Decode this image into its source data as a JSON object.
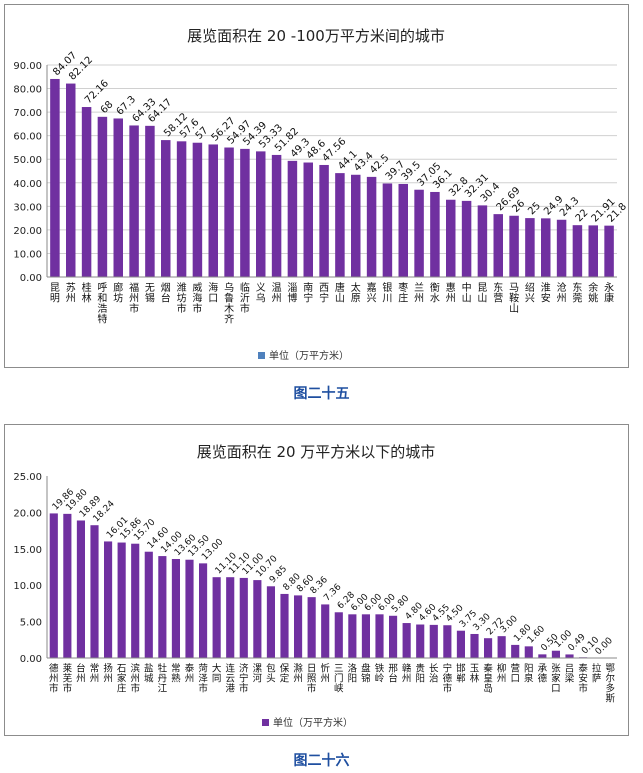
{
  "colors": {
    "bar": "#7030a0",
    "legend_swatch1": "#4f81bd",
    "legend_swatch2": "#7030a0",
    "caption": "#1f4fa0",
    "grid": "#d0d0d0"
  },
  "captions": [
    "图二十五",
    "图二十六"
  ],
  "chart_data": [
    {
      "type": "bar",
      "title": "展览面积在 20 -100万平方米间的城市",
      "legend": "单位（万平方米）",
      "ylim": [
        0,
        90
      ],
      "yticks": [
        "0.00",
        "10.00",
        "20.00",
        "30.00",
        "40.00",
        "50.00",
        "60.00",
        "70.00",
        "80.00",
        "90.00"
      ],
      "grid": true,
      "legend_position": "bottom",
      "categories": [
        "昆明",
        "苏州",
        "桂林",
        "呼和浩特",
        "廊坊",
        "福州市",
        "无锡",
        "烟台",
        "潍坊市",
        "威海市",
        "海口",
        "乌鲁木齐",
        "临沂市",
        "义乌",
        "温州",
        "淄博",
        "南宁",
        "西宁",
        "唐山",
        "太原",
        "嘉兴",
        "银川",
        "枣庄",
        "兰州",
        "衡水",
        "惠州",
        "中山",
        "昆山",
        "东营",
        "马鞍山",
        "绍兴",
        "淮安",
        "沧州",
        "东莞",
        "余姚",
        "永康"
      ],
      "values": [
        84.07,
        82.12,
        72.16,
        68,
        67.3,
        64.33,
        64.17,
        58.12,
        57.6,
        57,
        56.27,
        54.97,
        54.39,
        53.33,
        51.82,
        49.3,
        48.6,
        47.56,
        44.1,
        43.4,
        42.5,
        39.7,
        39.5,
        37.05,
        36.1,
        32.8,
        32.31,
        30.4,
        26.69,
        26,
        25,
        24.9,
        24.3,
        22,
        21.91,
        21.8
      ],
      "labels": [
        "84.07",
        "82.12",
        "72.16",
        "68",
        "67.3",
        "64.33",
        "64.17",
        "58.12",
        "57.6",
        "57",
        "56.27",
        "54.97",
        "54.39",
        "53.33",
        "51.82",
        "49.3",
        "48.6",
        "47.56",
        "44.1",
        "43.4",
        "42.5",
        "39.7",
        "39.5",
        "37.05",
        "36.1",
        "32.8",
        "32.31",
        "30.4",
        "26.69",
        "26",
        "25",
        "24.9",
        "24.3",
        "22",
        "21.91",
        "21.8"
      ]
    },
    {
      "type": "bar",
      "title": "展览面积在 20 万平方米以下的城市",
      "legend": "单位（万平方米）",
      "ylim": [
        0,
        25
      ],
      "yticks": [
        "0.00",
        "5.00",
        "10.00",
        "15.00",
        "20.00",
        "25.00"
      ],
      "grid": false,
      "legend_position": "bottom",
      "categories": [
        "德州市",
        "莱芜市",
        "台州",
        "常州",
        "扬州",
        "石家庄",
        "滨州市",
        "盐城",
        "牡丹江",
        "常熟",
        "泰州",
        "菏泽市",
        "大同",
        "连云港",
        "济宁市",
        "漯河",
        "包头",
        "保定",
        "滁州",
        "日照市",
        "忻州",
        "三门峡",
        "洛阳",
        "盘锦",
        "铁岭",
        "邢台",
        "赣州",
        "贵阳",
        "长治",
        "宁德市",
        "邯郸",
        "玉林",
        "秦皇岛",
        "柳州",
        "营口",
        "阳泉",
        "承德",
        "张家口",
        "吕梁",
        "泰安市",
        "拉萨",
        "鄂尔多斯"
      ],
      "values": [
        19.86,
        19.8,
        18.89,
        18.24,
        16.01,
        15.86,
        15.7,
        14.6,
        14.0,
        13.6,
        13.5,
        13.0,
        11.1,
        11.1,
        11.0,
        10.7,
        9.85,
        8.8,
        8.6,
        8.36,
        7.36,
        6.28,
        6.0,
        6.0,
        6.0,
        5.8,
        4.8,
        4.6,
        4.55,
        4.5,
        3.75,
        3.3,
        2.72,
        3.0,
        1.8,
        1.6,
        0.5,
        1.0,
        0.49,
        0.1,
        0.0,
        0.0
      ],
      "labels": [
        "19.86",
        "19.80",
        "18.89",
        "18.24",
        "16.01",
        "15.86",
        "15.70",
        "14.60",
        "14.00",
        "13.60",
        "13.50",
        "13.00",
        "11.10",
        "11.10",
        "11.00",
        "10.70",
        "9.85",
        "8.80",
        "8.60",
        "8.36",
        "7.36",
        "6.28",
        "6.00",
        "6.00",
        "6.00",
        "5.80",
        "4.80",
        "4.60",
        "4.55",
        "4.50",
        "3.75",
        "3.30",
        "2.72",
        "3.00",
        "1.80",
        "1.60",
        "0.50",
        "1.00",
        "0.49",
        "0.10",
        "0.00",
        ""
      ]
    }
  ]
}
